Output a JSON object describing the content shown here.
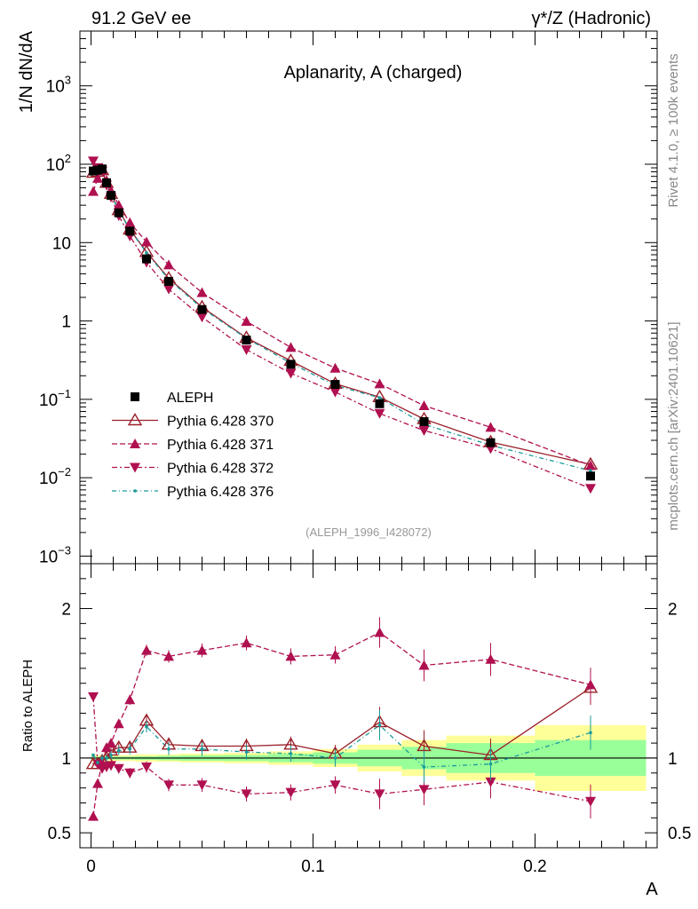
{
  "header": {
    "left": "91.2 GeV ee",
    "right": "γ*/Z (Hadronic)"
  },
  "side_labels": {
    "rivet": "Rivet 4.1.0, ≥ 100k events",
    "mcplots": "mcplots.cern.ch [arXiv:2401.10621]"
  },
  "chart_data": [
    {
      "type": "line",
      "panel": "main",
      "title": "Aplanarity, A (charged)",
      "ylabel": "1/N  dN/dA",
      "xlabel": "A",
      "yscale": "log",
      "xlim": [
        -0.005,
        0.255
      ],
      "ylim": [
        0.0008,
        5000
      ],
      "grid": false,
      "legend_position": "left-middle",
      "analysis_id": "(ALEPH_1996_I428072)",
      "x_ticks": [
        "0",
        "0.1",
        "0.2"
      ],
      "y_ticks": [
        {
          "value": 1000,
          "mant": "10",
          "exp": "3"
        },
        {
          "value": 100,
          "mant": "10",
          "exp": "2"
        },
        {
          "value": 10,
          "mant": "10",
          "exp": ""
        },
        {
          "value": 1,
          "mant": "1",
          "exp": ""
        },
        {
          "value": 0.1,
          "mant": "10",
          "exp": "−1"
        },
        {
          "value": 0.01,
          "mant": "10",
          "exp": "−2"
        },
        {
          "value": 0.001,
          "mant": "10",
          "exp": "−3"
        }
      ],
      "x": [
        0.001,
        0.003,
        0.005,
        0.007,
        0.009,
        0.0125,
        0.0175,
        0.025,
        0.035,
        0.05,
        0.07,
        0.09,
        0.11,
        0.13,
        0.15,
        0.18,
        0.225
      ],
      "series": [
        {
          "name": "ALEPH",
          "values": [
            82,
            84,
            87,
            58,
            40,
            24,
            14,
            6.2,
            3.2,
            1.4,
            0.57,
            0.28,
            0.155,
            0.088,
            0.052,
            0.028,
            0.0105
          ]
        },
        {
          "name": "Pythia 6.428 370",
          "values": [
            78,
            80,
            84,
            58,
            42,
            26,
            14.7,
            7.6,
            3.5,
            1.5,
            0.61,
            0.31,
            0.158,
            0.107,
            0.056,
            0.0285,
            0.0148
          ]
        },
        {
          "name": "Pythia 6.428 371",
          "values": [
            45,
            66,
            84,
            62,
            46,
            30,
            18,
            10.2,
            5.2,
            2.3,
            0.99,
            0.46,
            0.25,
            0.158,
            0.083,
            0.044,
            0.0143
          ]
        },
        {
          "name": "Pythia 6.428 372",
          "values": [
            110,
            90,
            82,
            54,
            38,
            22,
            12.1,
            5.6,
            2.55,
            1.12,
            0.43,
            0.215,
            0.124,
            0.066,
            0.04,
            0.0235,
            0.0073
          ]
        },
        {
          "name": "Pythia 6.428 376",
          "values": [
            80,
            82,
            84,
            58,
            41,
            25.5,
            14.6,
            7.4,
            3.4,
            1.45,
            0.6,
            0.29,
            0.15,
            0.105,
            0.048,
            0.026,
            0.0123
          ]
        }
      ]
    },
    {
      "type": "line",
      "panel": "ratio",
      "ylabel": "Ratio to ALEPH",
      "xlim": [
        -0.005,
        0.255
      ],
      "ylim": [
        0.4,
        2.3
      ],
      "grid": false,
      "y_ticks": [
        "0.5",
        "1",
        "2"
      ],
      "x": [
        0.001,
        0.003,
        0.005,
        0.007,
        0.009,
        0.0125,
        0.0175,
        0.025,
        0.035,
        0.05,
        0.07,
        0.09,
        0.11,
        0.13,
        0.15,
        0.18,
        0.225
      ],
      "bin_edges": [
        0,
        0.002,
        0.004,
        0.006,
        0.008,
        0.01,
        0.015,
        0.02,
        0.03,
        0.04,
        0.06,
        0.08,
        0.1,
        0.12,
        0.14,
        0.16,
        0.2,
        0.25
      ],
      "band_outer": [
        0.025,
        0.02,
        0.02,
        0.02,
        0.02,
        0.02,
        0.02,
        0.025,
        0.025,
        0.03,
        0.035,
        0.045,
        0.06,
        0.09,
        0.12,
        0.15,
        0.22
      ],
      "band_inner": [
        0.012,
        0.01,
        0.01,
        0.01,
        0.01,
        0.01,
        0.01,
        0.012,
        0.015,
        0.018,
        0.02,
        0.028,
        0.038,
        0.055,
        0.075,
        0.1,
        0.12
      ],
      "series": [
        {
          "name": "Pythia 6.428 370",
          "values": [
            0.96,
            0.96,
            0.98,
            1.0,
            1.05,
            1.07,
            1.07,
            1.25,
            1.09,
            1.08,
            1.08,
            1.09,
            1.03,
            1.24,
            1.08,
            1.02,
            1.47
          ]
        },
        {
          "name": "Pythia 6.428 371",
          "values": [
            0.61,
            0.83,
            0.97,
            1.07,
            1.1,
            1.23,
            1.39,
            1.72,
            1.68,
            1.72,
            1.77,
            1.68,
            1.69,
            1.84,
            1.62,
            1.66,
            1.49
          ]
        },
        {
          "name": "Pythia 6.428 372",
          "values": [
            1.41,
            0.96,
            0.93,
            0.94,
            0.95,
            0.93,
            0.9,
            0.94,
            0.82,
            0.82,
            0.76,
            0.77,
            0.82,
            0.76,
            0.79,
            0.84,
            0.71
          ]
        },
        {
          "name": "Pythia 6.428 376",
          "values": [
            1.02,
            0.97,
            1.0,
            1.0,
            1.02,
            1.05,
            1.06,
            1.21,
            1.06,
            1.06,
            1.04,
            1.03,
            1.0,
            1.22,
            0.94,
            0.96,
            1.17
          ]
        }
      ]
    }
  ],
  "colors": {
    "data": "#000000",
    "p370": "#9a1f2a",
    "p371": "#b01050",
    "p372": "#b01050",
    "p376": "#1a9a9a",
    "band_outer": "#ffff99",
    "band_inner": "#99ff99"
  }
}
